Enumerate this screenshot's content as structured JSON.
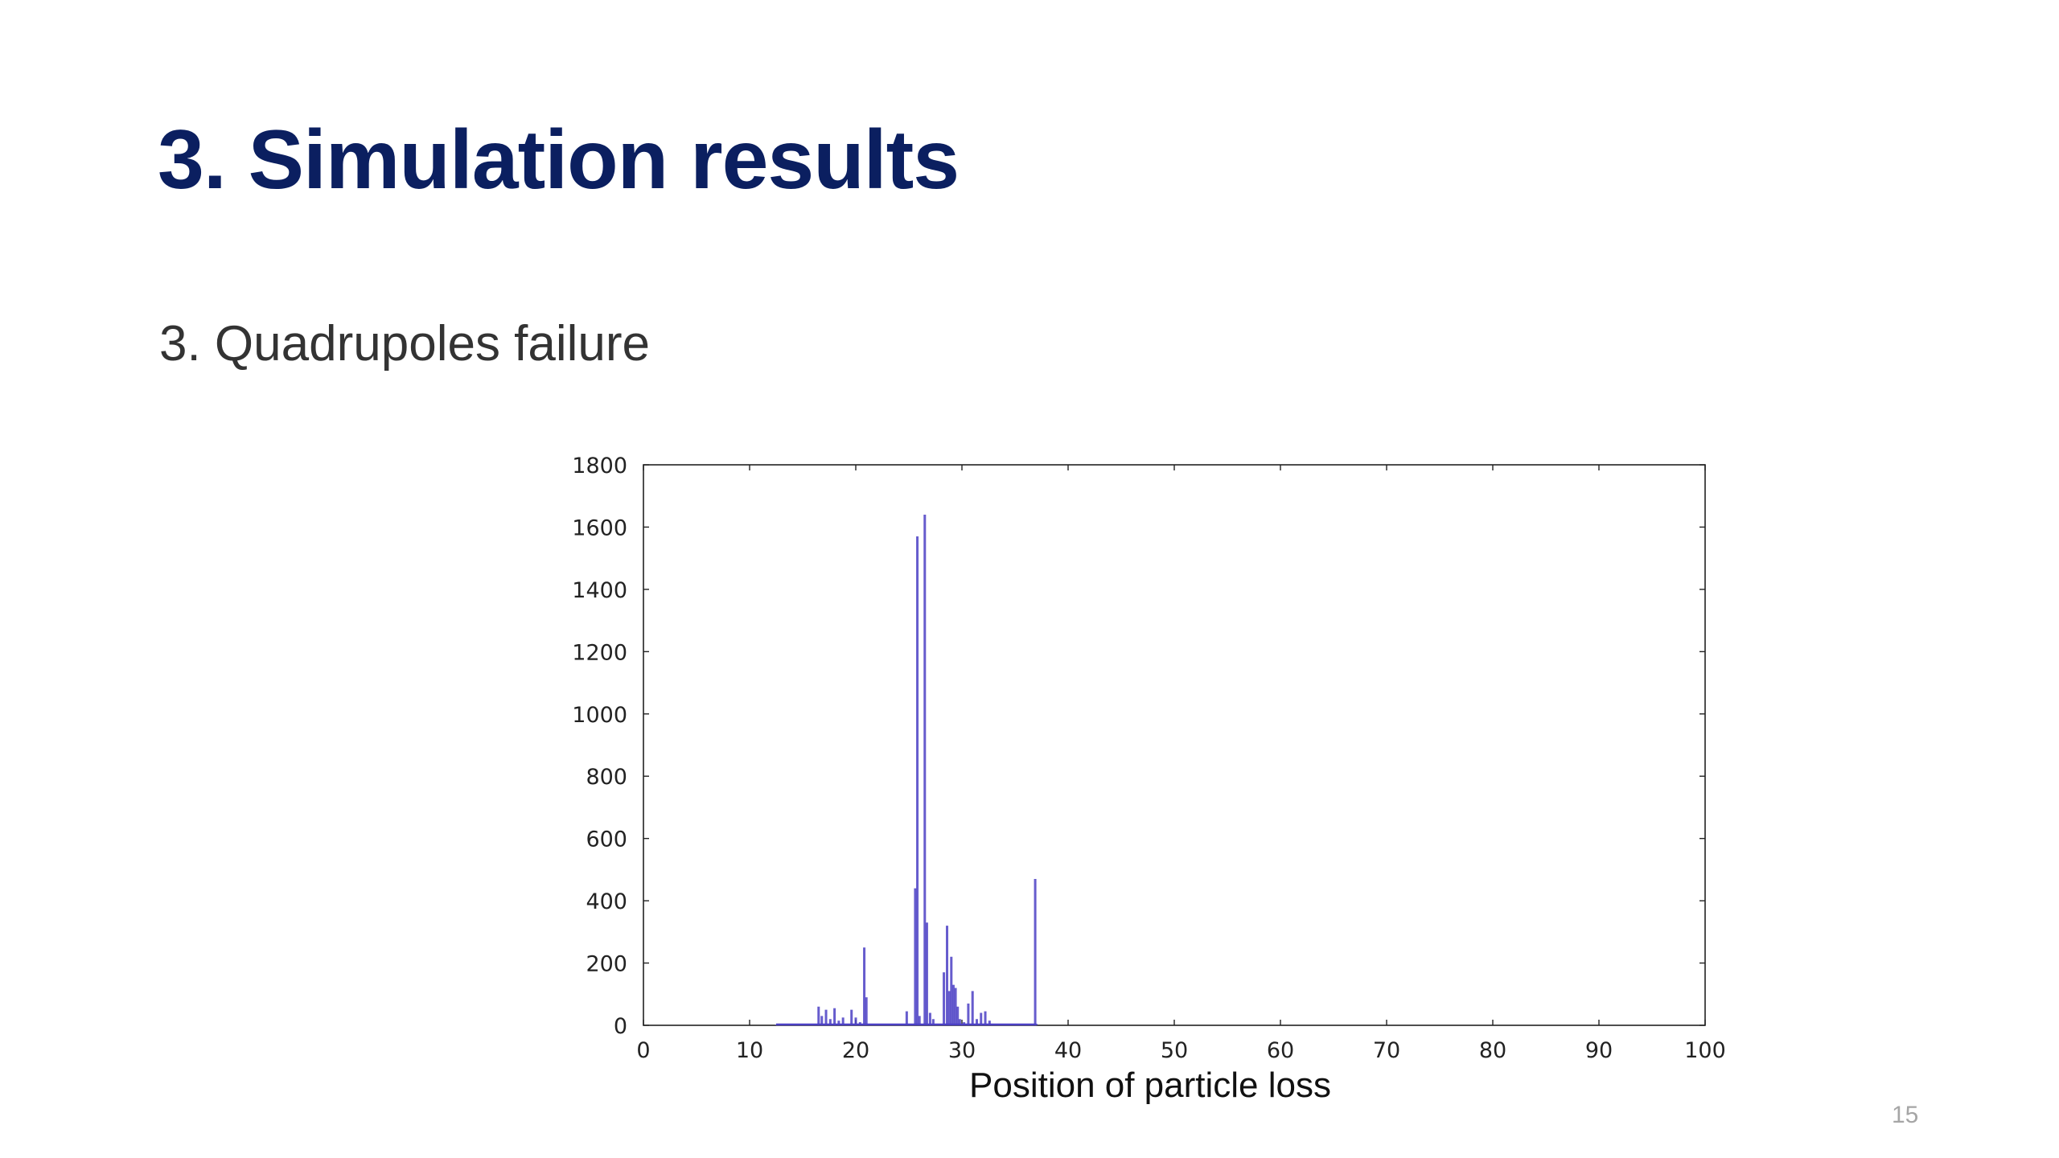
{
  "slide": {
    "title": "3. Simulation results",
    "subtitle": "3. Quadrupoles failure",
    "page_number": "15"
  },
  "colors": {
    "title": "#0b1f60",
    "bar": "#4b3fc4",
    "axis": "#222222"
  },
  "chart_data": {
    "type": "bar",
    "title": "",
    "xlabel": "Position of particle loss",
    "ylabel": "",
    "xlim": [
      0,
      100
    ],
    "ylim": [
      0,
      1800
    ],
    "xticks": [
      0,
      10,
      20,
      30,
      40,
      50,
      60,
      70,
      80,
      90,
      100
    ],
    "yticks": [
      0,
      200,
      400,
      600,
      800,
      1000,
      1200,
      1400,
      1600,
      1800
    ],
    "grid": false,
    "legend": "none",
    "series": [
      {
        "x": [
          12.5,
          16.5,
          16.8,
          17.2,
          17.6,
          18.0,
          18.4,
          18.8,
          19.6,
          20.0,
          20.4,
          20.8,
          21.0,
          24.8,
          25.6,
          25.8,
          26.0,
          26.5,
          26.7,
          27.0,
          27.3,
          28.3,
          28.6,
          28.8,
          29.0,
          29.2,
          29.4,
          29.6,
          29.8,
          30.2,
          30.6,
          31.0,
          31.4,
          31.8,
          32.2,
          32.6,
          36.9,
          37.0
        ],
        "values": [
          2,
          60,
          30,
          50,
          20,
          55,
          15,
          25,
          50,
          25,
          10,
          250,
          90,
          45,
          440,
          1570,
          30,
          1640,
          330,
          40,
          20,
          170,
          320,
          110,
          220,
          130,
          120,
          60,
          20,
          10,
          70,
          110,
          20,
          40,
          45,
          15,
          470,
          5
        ]
      }
    ]
  }
}
